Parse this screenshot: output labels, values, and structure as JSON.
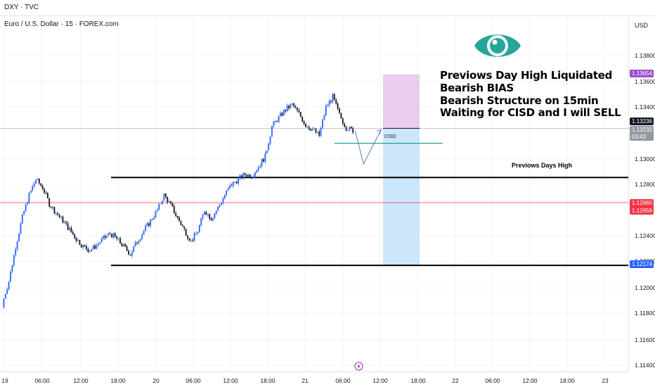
{
  "header": {
    "ticker": "DXY · TVC",
    "symbol_title": "Euro / U.S. Dollar · 15 · FOREX.com"
  },
  "axis": {
    "currency": "USD",
    "y_ticks": [
      "1.13800",
      "1.13600",
      "1.13400",
      "1.13000",
      "1.12800",
      "1.12400",
      "1.12200",
      "1.12000",
      "1.11800",
      "1.11600",
      "1.11400"
    ],
    "x_ticks": [
      "19",
      "06:00",
      "12:00",
      "18:00",
      "20",
      "06:00",
      "12:00",
      "18:00",
      "21",
      "06:00",
      "12:00",
      "18:00",
      "22",
      "06:00",
      "12:00",
      "18:00",
      "23"
    ]
  },
  "price_tags": {
    "tp_high": "1.13654",
    "current": "1.13236",
    "current_secondary": "1.13230",
    "countdown": "03:43",
    "red_line_top": "1.12660",
    "red_line_bottom": "1.12659",
    "low": "1.12174"
  },
  "annotations": {
    "note_lines": [
      "Previows Day High Liquidated",
      "Bearish BIAS",
      "Bearish Structure on 15min",
      "Waiting for CISD and I will SELL"
    ],
    "previous_day_high_label": "Previows Days High",
    "cisd_label": "CISD"
  },
  "colors": {
    "up_candle": "#2962ff",
    "down_candle": "#131722",
    "red_line": "#f23645",
    "stop_zone": "#e1bee7",
    "target_zone": "#bbdefb",
    "cisd_line": "#089981",
    "eye_icon": "#26a69a",
    "tag_purple": "#9c4dcc",
    "tag_black": "#131722",
    "tag_gray": "#9598a1",
    "tag_red": "#f23645",
    "tag_blue": "#2962ff"
  },
  "chart_data": {
    "type": "candlestick",
    "price_range": [
      1.1135,
      1.1395
    ],
    "levels": {
      "previous_day_high": 1.12855,
      "previous_day_low": 1.12174,
      "red_line": 1.1266,
      "current": 1.13236,
      "cisd": 1.1312
    },
    "position": {
      "entry": 1.13236,
      "stop": 1.13654,
      "target": 1.12174
    },
    "close_path": [
      [
        0,
        1.1185
      ],
      [
        0.3,
        1.1193
      ],
      [
        1,
        1.1205
      ],
      [
        2,
        1.1232
      ],
      [
        3,
        1.1255
      ],
      [
        4,
        1.1272
      ],
      [
        5,
        1.1284
      ],
      [
        6,
        1.1278
      ],
      [
        7,
        1.1265
      ],
      [
        8,
        1.1258
      ],
      [
        9,
        1.1252
      ],
      [
        10,
        1.1245
      ],
      [
        11,
        1.1238
      ],
      [
        12,
        1.1232
      ],
      [
        13,
        1.1229
      ],
      [
        14,
        1.1233
      ],
      [
        15,
        1.1238
      ],
      [
        16,
        1.1242
      ],
      [
        17,
        1.1238
      ],
      [
        18,
        1.1232
      ],
      [
        19,
        1.1226
      ],
      [
        20,
        1.1236
      ],
      [
        21,
        1.1244
      ],
      [
        22,
        1.1252
      ],
      [
        23,
        1.126
      ],
      [
        24,
        1.1272
      ],
      [
        25,
        1.1264
      ],
      [
        26,
        1.1254
      ],
      [
        27,
        1.1245
      ],
      [
        28,
        1.1236
      ],
      [
        29,
        1.1244
      ],
      [
        30,
        1.126
      ],
      [
        31,
        1.1254
      ],
      [
        32,
        1.1262
      ],
      [
        33,
        1.1272
      ],
      [
        34,
        1.128
      ],
      [
        35,
        1.1284
      ],
      [
        36,
        1.1288
      ],
      [
        37,
        1.1287
      ],
      [
        38,
        1.1294
      ],
      [
        39,
        1.1302
      ],
      [
        40,
        1.1325
      ],
      [
        41,
        1.1332
      ],
      [
        42,
        1.1338
      ],
      [
        43,
        1.1342
      ],
      [
        44,
        1.1335
      ],
      [
        45,
        1.1326
      ],
      [
        46,
        1.1323
      ],
      [
        47,
        1.1318
      ],
      [
        48,
        1.134
      ],
      [
        49,
        1.1348
      ],
      [
        50,
        1.1334
      ],
      [
        51,
        1.1324
      ],
      [
        52,
        1.1322
      ]
    ]
  }
}
